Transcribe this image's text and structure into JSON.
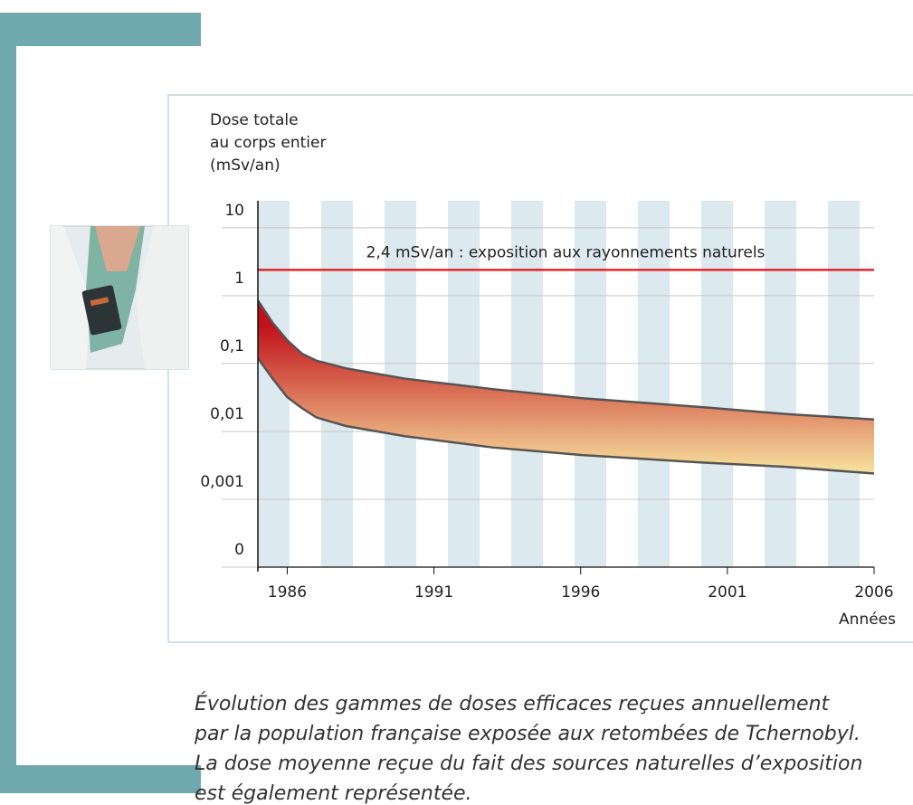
{
  "chart_data": {
    "type": "band",
    "y_label_lines": [
      "Dose totale",
      "au corps entier",
      "(mSv/an)"
    ],
    "x_label": "Années",
    "log_y": true,
    "grid": true,
    "x": [
      1985,
      1985.5,
      1986,
      1986.5,
      1987,
      1988,
      1990,
      1993,
      1996,
      2000,
      2003,
      2006
    ],
    "series": [
      {
        "color": "#555555",
        "values": [
          0.85,
          0.4,
          0.22,
          0.14,
          0.11,
          0.085,
          0.06,
          0.042,
          0.031,
          0.023,
          0.018,
          0.015
        ]
      },
      {
        "color": "#555555",
        "values": [
          0.12,
          0.06,
          0.032,
          0.022,
          0.016,
          0.012,
          0.0085,
          0.0058,
          0.0045,
          0.0035,
          0.003,
          0.0024
        ]
      }
    ],
    "fill_colors": [
      "#c1121a",
      "#f7e3a0"
    ],
    "reference": {
      "value": 2.4,
      "label": "2,4 mSv/an : exposition aux rayonnements naturels",
      "color": "#e3262b"
    },
    "xlim": [
      1985,
      2006
    ],
    "xticks": [
      1986,
      1991,
      1996,
      2001,
      2006
    ],
    "ylim": [
      0.0001,
      25
    ],
    "yticks": [
      10,
      1,
      {
        "value": 0.1,
        "label": "0,1"
      },
      {
        "value": 0.01,
        "label": "0,01"
      },
      {
        "value": 0.001,
        "label": "0,001"
      },
      {
        "value": 0.0001,
        "label": "0"
      }
    ]
  },
  "caption_lines": [
    "Évolution des gammes de doses efficaces reçues annuellement",
    "par la population française exposée aux retombées de Tchernobyl.",
    "La dose moyenne reçue du fait des sources naturelles d’exposition",
    "est également représentée."
  ]
}
